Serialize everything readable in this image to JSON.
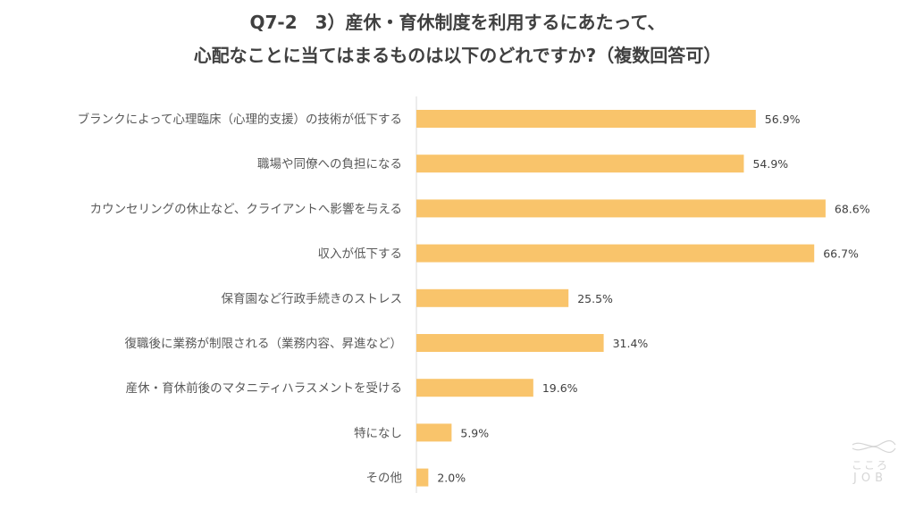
{
  "title": {
    "line1": "Q7-2　3）産休・育休制度を利用するにあたって、",
    "line2": "心配なことに当てはまるものは以下のどれですか?（複数回答可）"
  },
  "colors": {
    "bar": "#f9c46b",
    "axis": "#d9d9d9"
  },
  "logo": {
    "icon": "wave-lines-icon",
    "text1": "こころ",
    "text2": "JOB"
  },
  "chart_data": {
    "type": "bar",
    "orientation": "horizontal",
    "categories": [
      "ブランクによって心理臨床（心理的支援）の技術が低下する",
      "職場や同僚への負担になる",
      "カウンセリングの休止など、クライアントへ影響を与える",
      "収入が低下する",
      "保育園など行政手続きのストレス",
      "復職後に業務が制限される（業務内容、昇進など）",
      "産休・育休前後のマタニティハラスメントを受ける",
      "特になし",
      "その他"
    ],
    "values": [
      56.9,
      54.9,
      68.6,
      66.7,
      25.5,
      31.4,
      19.6,
      5.9,
      2.0
    ],
    "value_labels": [
      "56.9%",
      "54.9%",
      "68.6%",
      "66.7%",
      "25.5%",
      "31.4%",
      "19.6%",
      "5.9%",
      "2.0%"
    ],
    "xlim": [
      0,
      80
    ],
    "grid": false,
    "legend": "none"
  }
}
